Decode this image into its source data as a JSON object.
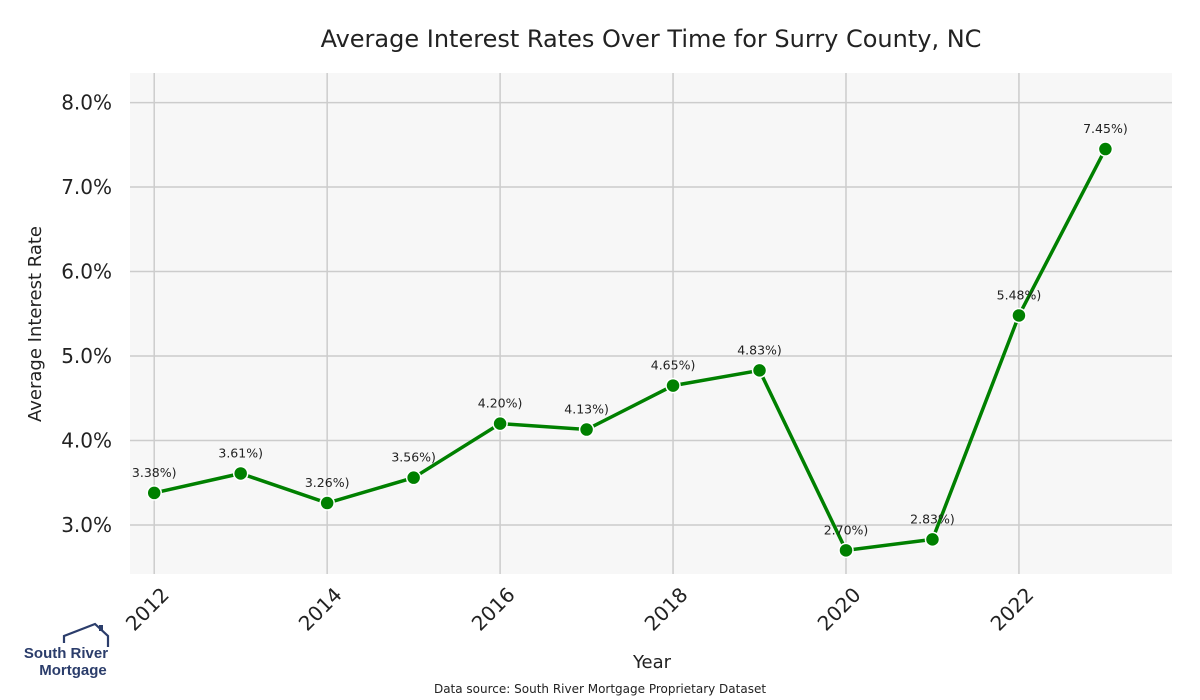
{
  "chart_data": {
    "type": "line",
    "title": "Average Interest Rates Over Time for Surry County, NC",
    "xlabel": "Year",
    "ylabel": "Average Interest Rate",
    "x": [
      2012,
      2013,
      2014,
      2015,
      2016,
      2017,
      2018,
      2019,
      2020,
      2021,
      2022,
      2023
    ],
    "values": [
      3.38,
      3.61,
      3.26,
      3.56,
      4.2,
      4.13,
      4.65,
      4.83,
      2.7,
      2.83,
      5.48,
      7.45
    ],
    "data_labels": [
      "3.38%)",
      "3.61%)",
      "3.26%)",
      "3.56%)",
      "4.20%)",
      "4.13%)",
      "4.65%)",
      "4.83%)",
      "2.70%)",
      "2.83%)",
      "5.48%)",
      "7.45%)"
    ],
    "xticks": [
      2012,
      2014,
      2016,
      2018,
      2020,
      2022
    ],
    "yticks": [
      3.0,
      4.0,
      5.0,
      6.0,
      7.0,
      8.0
    ],
    "ytick_labels": [
      "3.0%",
      "4.0%",
      "5.0%",
      "6.0%",
      "7.0%",
      "8.0%"
    ],
    "xlim": [
      2011.72,
      2023.77
    ],
    "ylim": [
      2.42,
      8.35
    ],
    "grid": true,
    "line_color": "#008000",
    "background_color": "#f7f7f7",
    "grid_color": "#cccccc"
  },
  "source_note": "Data source: South River Mortgage Proprietary Dataset",
  "logo": {
    "line1": "South River",
    "line2": "Mortgage",
    "color": "#2b3d6b"
  }
}
